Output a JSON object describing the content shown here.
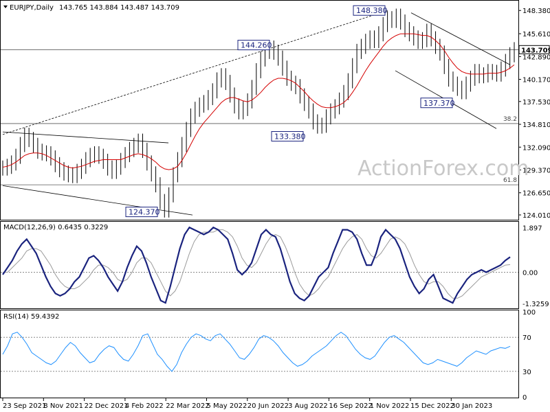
{
  "chart_data": {
    "type": "candlestick",
    "title": "EURJPY,Daily",
    "ohlc": "143.765 143.884 143.487 143.709",
    "last_price": "143.709",
    "watermark": "ActionForex.com",
    "x_tick_labels": [
      "23 Sep 2021",
      "8 Nov 2021",
      "22 Dec 2021",
      "4 Feb 2022",
      "22 Mar 2022",
      "5 May 2022",
      "20 Jun 2022",
      "3 Aug 2022",
      "16 Sep 2022",
      "1 Nov 2022",
      "15 Dec 2022",
      "30 Jan 2023"
    ],
    "price_axis": {
      "ylim": [
        123.6,
        149.3
      ],
      "ticks": [
        "148.380",
        "145.610",
        "142.890",
        "140.170",
        "137.530",
        "134.810",
        "132.090",
        "129.370",
        "126.650",
        "124.010"
      ]
    },
    "levels": [
      {
        "label": "38.2",
        "value": 134.9
      },
      {
        "label": "61.8",
        "value": 127.6
      },
      {
        "label": "",
        "value": 143.709
      }
    ],
    "callouts": [
      {
        "text": "148.380",
        "value": 148.38
      },
      {
        "text": "144.260",
        "value": 144.26
      },
      {
        "text": "133.380",
        "value": 133.38
      },
      {
        "text": "137.370",
        "value": 137.37
      },
      {
        "text": "124.370",
        "value": 124.37
      }
    ],
    "price_series": {
      "name": "EURJPY close (approx)",
      "values": [
        129.6,
        129.8,
        130.2,
        131.0,
        132.4,
        133.5,
        133.0,
        132.3,
        131.6,
        131.4,
        131.3,
        130.8,
        130.0,
        129.4,
        129.0,
        128.8,
        128.7,
        129.2,
        129.8,
        130.6,
        131.1,
        131.3,
        131.0,
        130.4,
        129.6,
        129.2,
        129.7,
        130.5,
        131.2,
        131.8,
        132.3,
        132.8,
        131.7,
        130.2,
        128.9,
        127.6,
        125.6,
        124.6,
        126.4,
        128.8,
        130.6,
        132.4,
        134.2,
        135.8,
        136.6,
        137.1,
        137.4,
        138.0,
        138.8,
        140.1,
        140.6,
        139.8,
        138.3,
        137.0,
        136.3,
        136.7,
        137.6,
        139.2,
        141.2,
        142.6,
        143.5,
        143.9,
        143.4,
        142.7,
        141.5,
        140.3,
        139.7,
        139.3,
        138.2,
        137.3,
        136.4,
        135.1,
        134.6,
        134.7,
        135.7,
        136.4,
        136.9,
        137.7,
        138.6,
        140.0,
        141.8,
        143.5,
        144.1,
        144.7,
        145.1,
        144.8,
        145.6,
        146.7,
        147.4,
        147.2,
        147.7,
        147.0,
        146.1,
        145.6,
        145.1,
        144.7,
        144.9,
        145.9,
        145.0,
        144.1,
        143.3,
        141.7,
        140.2,
        139.6,
        139.1,
        138.7,
        139.6,
        140.3,
        141.1,
        140.6,
        140.7,
        141.1,
        141.0,
        140.8,
        141.4,
        142.3,
        143.1,
        143.709
      ]
    },
    "ma_series": {
      "name": "Moving average (approx)",
      "values": [
        129.7,
        129.8,
        130.0,
        130.3,
        130.7,
        131.1,
        131.3,
        131.4,
        131.4,
        131.3,
        131.1,
        130.8,
        130.5,
        130.2,
        129.9,
        129.7,
        129.6,
        129.7,
        129.8,
        130.0,
        130.2,
        130.4,
        130.5,
        130.6,
        130.6,
        130.6,
        130.6,
        130.6,
        130.8,
        131.0,
        131.2,
        131.3,
        131.2,
        131.0,
        130.7,
        130.3,
        129.8,
        129.5,
        129.4,
        129.5,
        129.8,
        130.5,
        131.4,
        132.4,
        133.4,
        134.3,
        135.0,
        135.6,
        136.2,
        136.8,
        137.4,
        137.8,
        138.0,
        138.0,
        137.8,
        137.6,
        137.5,
        137.7,
        138.1,
        138.6,
        139.2,
        139.7,
        140.1,
        140.3,
        140.3,
        140.2,
        140.0,
        139.7,
        139.2,
        138.7,
        138.1,
        137.6,
        137.2,
        136.9,
        136.8,
        136.8,
        136.9,
        137.1,
        137.4,
        137.9,
        138.6,
        139.4,
        140.3,
        141.2,
        142.0,
        142.7,
        143.4,
        144.1,
        144.7,
        145.1,
        145.4,
        145.6,
        145.6,
        145.6,
        145.6,
        145.5,
        145.4,
        145.4,
        145.2,
        144.8,
        144.3,
        143.6,
        142.8,
        142.1,
        141.5,
        141.1,
        140.9,
        140.8,
        140.8,
        140.8,
        140.8,
        140.9,
        140.9,
        140.9,
        141.0,
        141.2,
        141.5,
        141.9
      ]
    },
    "macd": {
      "label": "MACD(12,26,9) 0.6435 0.3229",
      "ylim": [
        -1.5,
        2.05
      ],
      "ticks": [
        "1.897",
        "0.00",
        "-1.3259"
      ],
      "macd_values": [
        -0.1,
        0.2,
        0.5,
        0.9,
        1.2,
        1.4,
        1.1,
        0.8,
        0.3,
        -0.2,
        -0.6,
        -0.9,
        -1.0,
        -0.9,
        -0.7,
        -0.4,
        -0.2,
        0.2,
        0.6,
        0.7,
        0.5,
        0.2,
        -0.2,
        -0.5,
        -0.8,
        -0.4,
        0.2,
        0.7,
        1.1,
        0.9,
        0.4,
        -0.2,
        -0.7,
        -1.2,
        -1.3,
        -0.6,
        0.2,
        1.0,
        1.6,
        1.9,
        1.8,
        1.7,
        1.6,
        1.7,
        1.9,
        1.8,
        1.6,
        1.4,
        0.8,
        0.1,
        -0.1,
        0.1,
        0.4,
        1.0,
        1.6,
        1.8,
        1.6,
        1.5,
        1.0,
        0.3,
        -0.4,
        -0.9,
        -1.1,
        -1.2,
        -1.0,
        -0.6,
        -0.2,
        0.0,
        0.2,
        0.8,
        1.3,
        1.8,
        1.8,
        1.7,
        1.4,
        0.8,
        0.3,
        0.3,
        0.8,
        1.5,
        1.8,
        1.6,
        1.4,
        1.0,
        0.4,
        -0.2,
        -0.6,
        -0.9,
        -0.7,
        -0.3,
        -0.1,
        -0.6,
        -1.1,
        -1.2,
        -1.3,
        -0.9,
        -0.6,
        -0.3,
        -0.1,
        0.0,
        0.1,
        0.0,
        0.1,
        0.2,
        0.3,
        0.5,
        0.6435
      ],
      "signal_values": [
        0.0,
        0.0,
        0.2,
        0.4,
        0.6,
        0.9,
        1.0,
        1.0,
        0.9,
        0.6,
        0.3,
        -0.1,
        -0.4,
        -0.6,
        -0.7,
        -0.7,
        -0.6,
        -0.4,
        -0.2,
        0.1,
        0.3,
        0.3,
        0.2,
        0.0,
        -0.3,
        -0.4,
        -0.3,
        0.0,
        0.4,
        0.6,
        0.6,
        0.4,
        0.0,
        -0.4,
        -0.8,
        -1.0,
        -0.8,
        -0.4,
        0.2,
        0.8,
        1.3,
        1.6,
        1.7,
        1.7,
        1.7,
        1.8,
        1.8,
        1.7,
        1.5,
        1.1,
        0.6,
        0.3,
        0.2,
        0.4,
        0.8,
        1.2,
        1.5,
        1.6,
        1.5,
        1.1,
        0.6,
        0.0,
        -0.5,
        -0.8,
        -1.0,
        -0.9,
        -0.7,
        -0.4,
        -0.2,
        0.2,
        0.6,
        1.0,
        1.3,
        1.5,
        1.6,
        1.4,
        1.0,
        0.7,
        0.6,
        0.8,
        1.1,
        1.4,
        1.5,
        1.4,
        1.2,
        0.8,
        0.3,
        -0.1,
        -0.4,
        -0.5,
        -0.4,
        -0.4,
        -0.6,
        -0.9,
        -1.1,
        -1.1,
        -1.0,
        -0.8,
        -0.6,
        -0.4,
        -0.2,
        -0.1,
        0.0,
        0.1,
        0.2,
        0.3,
        0.3229
      ]
    },
    "rsi": {
      "label": "RSI(14) 59.4392",
      "ylim": [
        0,
        100
      ],
      "ticks": [
        "100",
        "70",
        "30",
        "0"
      ],
      "levels": [
        70,
        30
      ],
      "values": [
        50,
        60,
        74,
        76,
        70,
        62,
        52,
        48,
        44,
        40,
        38,
        42,
        50,
        58,
        64,
        60,
        52,
        46,
        40,
        42,
        50,
        56,
        60,
        58,
        50,
        44,
        42,
        50,
        60,
        72,
        74,
        62,
        50,
        44,
        36,
        30,
        38,
        52,
        62,
        70,
        74,
        72,
        68,
        66,
        72,
        74,
        68,
        62,
        54,
        46,
        44,
        50,
        58,
        68,
        72,
        70,
        66,
        60,
        52,
        46,
        40,
        36,
        38,
        42,
        48,
        52,
        56,
        60,
        66,
        72,
        76,
        72,
        64,
        56,
        50,
        46,
        44,
        48,
        56,
        64,
        70,
        72,
        68,
        64,
        58,
        52,
        46,
        40,
        38,
        40,
        44,
        42,
        40,
        38,
        36,
        40,
        46,
        50,
        54,
        52,
        50,
        54,
        56,
        58,
        57,
        59.4392
      ]
    }
  }
}
